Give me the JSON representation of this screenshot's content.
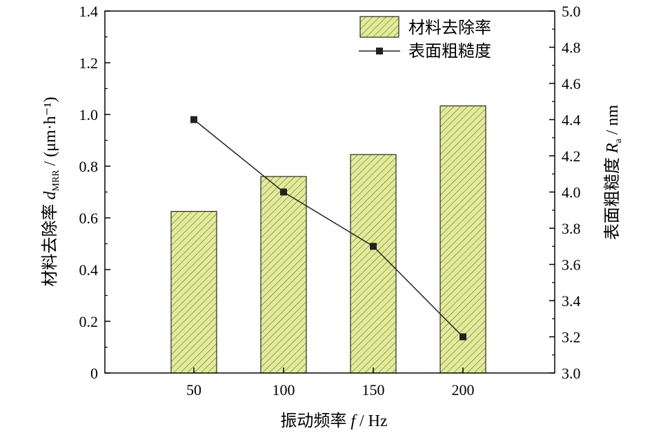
{
  "chart_data": {
    "type": "bar+line",
    "categories": [
      "50",
      "100",
      "150",
      "200"
    ],
    "xlabel": {
      "text": "振动频率",
      "var": "f",
      "unit": " / Hz"
    },
    "ylabel_left": {
      "text": "材料去除率",
      "var": "d",
      "sub": "MRR",
      "unit": " / (μm·h⁻¹)"
    },
    "ylabel_right": {
      "text": "表面粗糙度",
      "var": "R",
      "sub": "a",
      "unit": " / nm"
    },
    "left_ylim": [
      0,
      1.4
    ],
    "left_ticks": [
      "0",
      "0.2",
      "0.4",
      "0.6",
      "0.8",
      "1.0",
      "1.2",
      "1.4"
    ],
    "right_ylim": [
      3.0,
      5.0
    ],
    "right_ticks": [
      "3.0",
      "3.2",
      "3.4",
      "3.6",
      "3.8",
      "4.0",
      "4.2",
      "4.4",
      "4.6",
      "4.8",
      "5.0"
    ],
    "series": [
      {
        "name": "材料去除率",
        "kind": "bar",
        "axis": "left",
        "values": [
          0.625,
          0.76,
          0.845,
          1.033
        ],
        "color": "#e2ec96",
        "hatch_color": "#555555"
      },
      {
        "name": "表面粗糙度",
        "kind": "line",
        "axis": "right",
        "values": [
          4.4,
          4.0,
          3.7,
          3.2
        ],
        "color": "#222222"
      }
    ],
    "legend_position": "top-right",
    "grid": false
  }
}
